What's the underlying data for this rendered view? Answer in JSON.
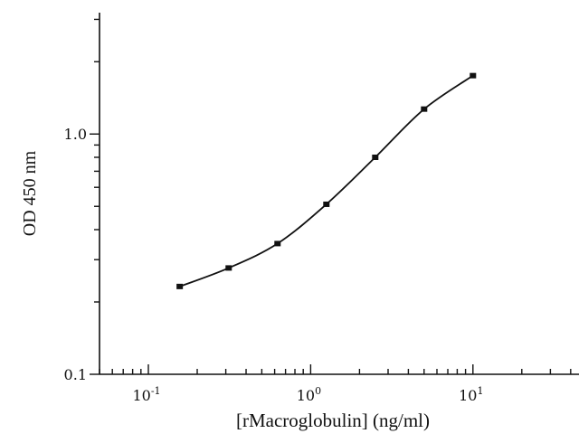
{
  "chart_data": {
    "type": "line",
    "title": "",
    "xlabel": "[rMacroglobulin] (ng/ml)",
    "ylabel": "OD 450 nm",
    "x_scale": "log",
    "y_scale": "log",
    "xlim": [
      0.05,
      45
    ],
    "ylim": [
      0.1,
      3.2
    ],
    "x_ticks": [
      {
        "value": 0.1,
        "base": "10",
        "exp": "-1"
      },
      {
        "value": 1,
        "base": "10",
        "exp": "0"
      },
      {
        "value": 10,
        "base": "10",
        "exp": "1"
      }
    ],
    "y_ticks": [
      {
        "value": 0.1,
        "label": "0.1"
      },
      {
        "value": 1.0,
        "label": "1.0"
      }
    ],
    "grid": false,
    "series": [
      {
        "x": [
          0.156,
          0.3125,
          0.625,
          1.25,
          2.5,
          5,
          10
        ],
        "y": [
          0.232,
          0.277,
          0.35,
          0.51,
          0.8,
          1.27,
          1.75
        ]
      }
    ]
  }
}
